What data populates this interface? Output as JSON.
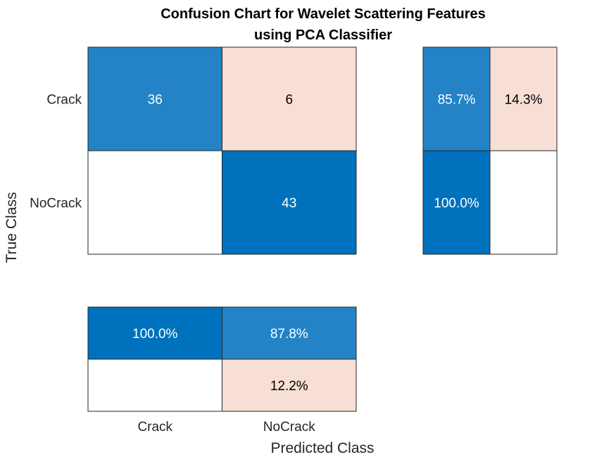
{
  "chart_data": {
    "type": "heatmap",
    "title_line1": "Confusion Chart for Wavelet Scattering Features",
    "title_line2": "using PCA Classifier",
    "xlabel": "Predicted Class",
    "ylabel": "True Class",
    "classes": [
      "Crack",
      "NoCrack"
    ],
    "matrix": [
      [
        36,
        6
      ],
      [
        0,
        43
      ]
    ],
    "row_summary": [
      [
        "85.7%",
        "14.3%"
      ],
      [
        "100.0%",
        ""
      ]
    ],
    "column_summary": [
      [
        "100.0%",
        "87.8%"
      ],
      [
        "",
        "12.2%"
      ]
    ],
    "colors": {
      "correct_dark": "#0072BD",
      "correct_mid": "#2383C6",
      "incorrect_light": "#F8DFD5",
      "empty": "#FFFFFF",
      "text_on_dark": "#FFFFFF",
      "text_on_light": "#000000",
      "grid": "#262626"
    }
  }
}
